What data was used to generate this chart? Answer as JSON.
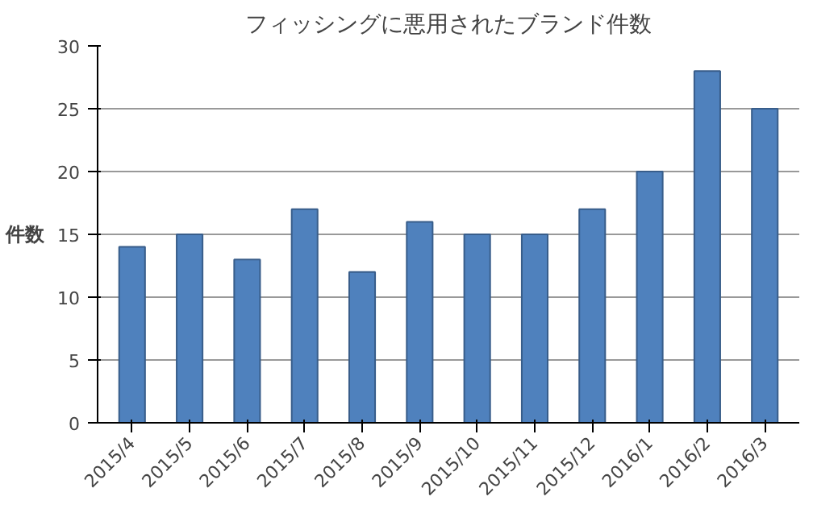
{
  "chart_data": {
    "type": "bar",
    "title": "フィッシングに悪用されたブランド件数",
    "ylabel": "件数",
    "categories": [
      "2015/4",
      "2015/5",
      "2015/6",
      "2015/7",
      "2015/8",
      "2015/9",
      "2015/10",
      "2015/11",
      "2015/12",
      "2016/1",
      "2016/2",
      "2016/3"
    ],
    "values": [
      14,
      15,
      13,
      17,
      12,
      16,
      15,
      15,
      17,
      20,
      28,
      25
    ],
    "color": "#4f81bd",
    "ylim": [
      0,
      30
    ],
    "yticks": [
      0,
      5,
      10,
      15,
      20,
      25,
      30
    ],
    "grid": "y"
  }
}
